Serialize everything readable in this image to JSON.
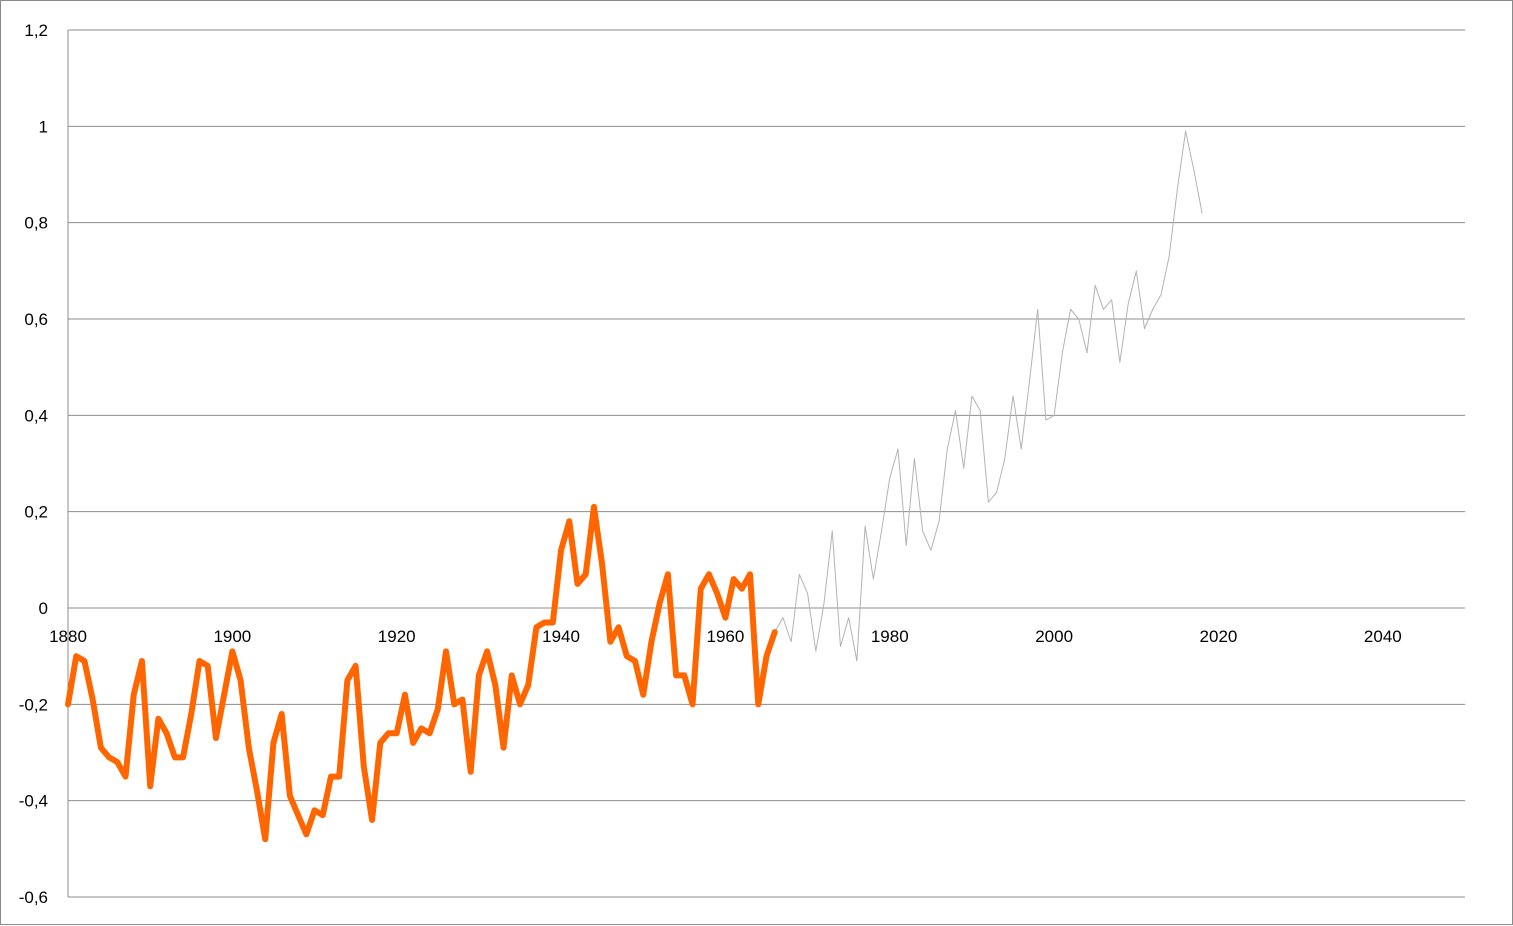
{
  "chart_data": {
    "type": "line",
    "title": "",
    "xlabel": "",
    "ylabel": "",
    "xlim": [
      1880,
      2050
    ],
    "ylim": [
      -0.6,
      1.2
    ],
    "x_ticks": [
      1880,
      1900,
      1920,
      1940,
      1960,
      1980,
      2000,
      2020,
      2040
    ],
    "y_ticks": [
      1.2,
      1,
      0.8,
      0.6,
      0.4,
      0.2,
      0,
      -0.2,
      -0.4,
      -0.6
    ],
    "y_tick_labels": [
      "1,2",
      "1",
      "0,8",
      "0,6",
      "0,4",
      "0,2",
      "0",
      "-0,2",
      "-0,4",
      "-0,6"
    ],
    "x_tick_labels": [
      "1880",
      "1900",
      "1920",
      "1940",
      "1960",
      "1980",
      "2000",
      "2020",
      "2040"
    ],
    "grid": "horizontal",
    "legend": "none",
    "colors": {
      "highlight": "#ff6600",
      "base": "#b3b3b3",
      "grid": "#8c8c8c"
    },
    "series": [
      {
        "x": [
          1880,
          1881,
          1882,
          1883,
          1884,
          1885,
          1886,
          1887,
          1888,
          1889,
          1890,
          1891,
          1892,
          1893,
          1894,
          1895,
          1896,
          1897,
          1898,
          1899,
          1900,
          1901,
          1902,
          1903,
          1904,
          1905,
          1906,
          1907,
          1908,
          1909,
          1910,
          1911,
          1912,
          1913,
          1914,
          1915,
          1916,
          1917,
          1918,
          1919,
          1920,
          1921,
          1922,
          1923,
          1924,
          1925,
          1926,
          1927,
          1928,
          1929,
          1930,
          1931,
          1932,
          1933,
          1934,
          1935,
          1936,
          1937,
          1938,
          1939,
          1940,
          1941,
          1942,
          1943,
          1944,
          1945,
          1946,
          1947,
          1948,
          1949,
          1950,
          1951,
          1952,
          1953,
          1954,
          1955,
          1956,
          1957,
          1958,
          1959,
          1960,
          1961,
          1962,
          1963,
          1964,
          1965,
          1966,
          1967,
          1968,
          1969,
          1970,
          1971,
          1972,
          1973,
          1974,
          1975,
          1976,
          1977,
          1978,
          1979,
          1980,
          1981,
          1982,
          1983,
          1984,
          1985,
          1986,
          1987,
          1988,
          1989,
          1990,
          1991,
          1992,
          1993,
          1994,
          1995,
          1996,
          1997,
          1998,
          1999,
          2000,
          2001,
          2002,
          2003,
          2004,
          2005,
          2006,
          2007,
          2008,
          2009,
          2010,
          2011,
          2012,
          2013,
          2014,
          2015,
          2016,
          2017,
          2018
        ],
        "y": [
          -0.2,
          -0.1,
          -0.11,
          -0.19,
          -0.29,
          -0.31,
          -0.32,
          -0.35,
          -0.18,
          -0.11,
          -0.37,
          -0.23,
          -0.26,
          -0.31,
          -0.31,
          -0.22,
          -0.11,
          -0.12,
          -0.27,
          -0.18,
          -0.09,
          -0.15,
          -0.29,
          -0.38,
          -0.48,
          -0.28,
          -0.22,
          -0.39,
          -0.43,
          -0.47,
          -0.42,
          -0.43,
          -0.35,
          -0.35,
          -0.15,
          -0.12,
          -0.33,
          -0.44,
          -0.28,
          -0.26,
          -0.26,
          -0.18,
          -0.28,
          -0.25,
          -0.26,
          -0.21,
          -0.09,
          -0.2,
          -0.19,
          -0.34,
          -0.14,
          -0.09,
          -0.16,
          -0.29,
          -0.14,
          -0.2,
          -0.16,
          -0.04,
          -0.03,
          -0.03,
          0.12,
          0.18,
          0.05,
          0.07,
          0.21,
          0.09,
          -0.07,
          -0.04,
          -0.1,
          -0.11,
          -0.18,
          -0.07,
          0.01,
          0.07,
          -0.14,
          -0.14,
          -0.2,
          0.04,
          0.07,
          0.03,
          -0.02,
          0.06,
          0.04,
          0.07,
          -0.2,
          -0.1,
          -0.05,
          -0.02,
          -0.07,
          0.07,
          0.03,
          -0.09,
          0.01,
          0.16,
          -0.08,
          -0.02,
          -0.11,
          0.17,
          0.06,
          0.16,
          0.27,
          0.33,
          0.13,
          0.31,
          0.16,
          0.12,
          0.18,
          0.33,
          0.41,
          0.29,
          0.44,
          0.41,
          0.22,
          0.24,
          0.31,
          0.44,
          0.33,
          0.47,
          0.62,
          0.39,
          0.4,
          0.53,
          0.62,
          0.6,
          0.53,
          0.67,
          0.62,
          0.64,
          0.51,
          0.63,
          0.7,
          0.58,
          0.62,
          0.65,
          0.73,
          0.87,
          0.99,
          0.91,
          0.82
        ],
        "color": "#b3b3b3",
        "width": 1
      },
      {
        "x": [
          1880,
          1881,
          1882,
          1883,
          1884,
          1885,
          1886,
          1887,
          1888,
          1889,
          1890,
          1891,
          1892,
          1893,
          1894,
          1895,
          1896,
          1897,
          1898,
          1899,
          1900,
          1901,
          1902,
          1903,
          1904,
          1905,
          1906,
          1907,
          1908,
          1909,
          1910,
          1911,
          1912,
          1913,
          1914,
          1915,
          1916,
          1917,
          1918,
          1919,
          1920,
          1921,
          1922,
          1923,
          1924,
          1925,
          1926,
          1927,
          1928,
          1929,
          1930,
          1931,
          1932,
          1933,
          1934,
          1935,
          1936,
          1937,
          1938,
          1939,
          1940,
          1941,
          1942,
          1943,
          1944,
          1945,
          1946,
          1947,
          1948,
          1949,
          1950,
          1951,
          1952,
          1953,
          1954,
          1955,
          1956,
          1957,
          1958,
          1959,
          1960,
          1961,
          1962,
          1963,
          1964,
          1965,
          1966
        ],
        "y": [
          -0.2,
          -0.1,
          -0.11,
          -0.19,
          -0.29,
          -0.31,
          -0.32,
          -0.35,
          -0.18,
          -0.11,
          -0.37,
          -0.23,
          -0.26,
          -0.31,
          -0.31,
          -0.22,
          -0.11,
          -0.12,
          -0.27,
          -0.18,
          -0.09,
          -0.15,
          -0.29,
          -0.38,
          -0.48,
          -0.28,
          -0.22,
          -0.39,
          -0.43,
          -0.47,
          -0.42,
          -0.43,
          -0.35,
          -0.35,
          -0.15,
          -0.12,
          -0.33,
          -0.44,
          -0.28,
          -0.26,
          -0.26,
          -0.18,
          -0.28,
          -0.25,
          -0.26,
          -0.21,
          -0.09,
          -0.2,
          -0.19,
          -0.34,
          -0.14,
          -0.09,
          -0.16,
          -0.29,
          -0.14,
          -0.2,
          -0.16,
          -0.04,
          -0.03,
          -0.03,
          0.12,
          0.18,
          0.05,
          0.07,
          0.21,
          0.09,
          -0.07,
          -0.04,
          -0.1,
          -0.11,
          -0.18,
          -0.07,
          0.01,
          0.07,
          -0.14,
          -0.14,
          -0.2,
          0.04,
          0.07,
          0.03,
          -0.02,
          0.06,
          0.04,
          0.07,
          -0.2,
          -0.1,
          -0.05
        ],
        "color": "#ff6600",
        "width": 6
      }
    ]
  }
}
